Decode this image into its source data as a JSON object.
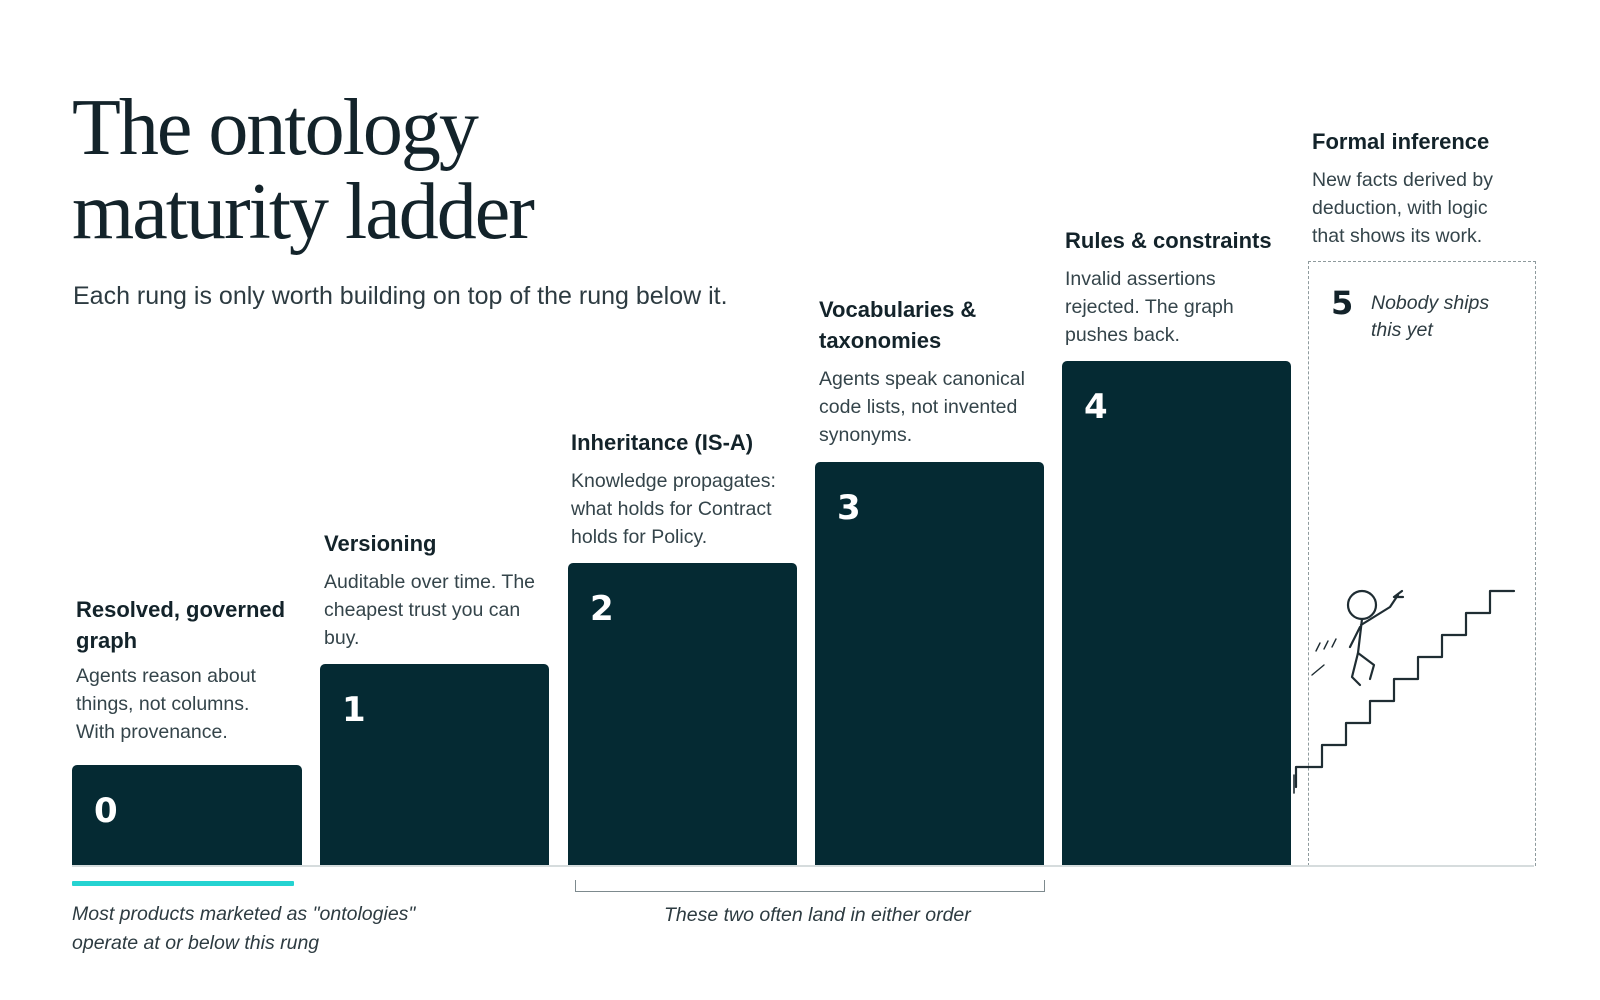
{
  "title": {
    "line1": "The ontology",
    "line2": "maturity ladder"
  },
  "subtitle": "Each rung is only worth building on top of the rung below it.",
  "rungs": [
    {
      "level": "0",
      "name": "Resolved, governed graph",
      "description": "Agents reason about things, not columns. With provenance."
    },
    {
      "level": "1",
      "name": "Versioning",
      "description": "Auditable over time. The cheapest trust you can buy."
    },
    {
      "level": "2",
      "name": "Inheritance (IS-A)",
      "description": "Knowledge propagates: what holds for Contract holds for Policy."
    },
    {
      "level": "3",
      "name": "Vocabularies & taxonomies",
      "description": "Agents speak canonical code lists, not invented synonyms."
    },
    {
      "level": "4",
      "name": "Rules & constraints",
      "description": "Invalid assertions rejected. The graph pushes back."
    },
    {
      "level": "5",
      "name": "Formal inference",
      "description": "New facts derived by deduction, with logic that shows its work.",
      "status_note": "Nobody ships this yet"
    }
  ],
  "notes": {
    "below_rung0": "Most products marketed as \"ontologies\" operate at or below this rung",
    "rungs_2_3_bracket": "These two often land in either order"
  },
  "colors": {
    "block": "#052a33",
    "accent": "#25d3d1",
    "text": "#13232a"
  },
  "icons": {
    "climber": "stick-figure-climbing-stairs"
  }
}
